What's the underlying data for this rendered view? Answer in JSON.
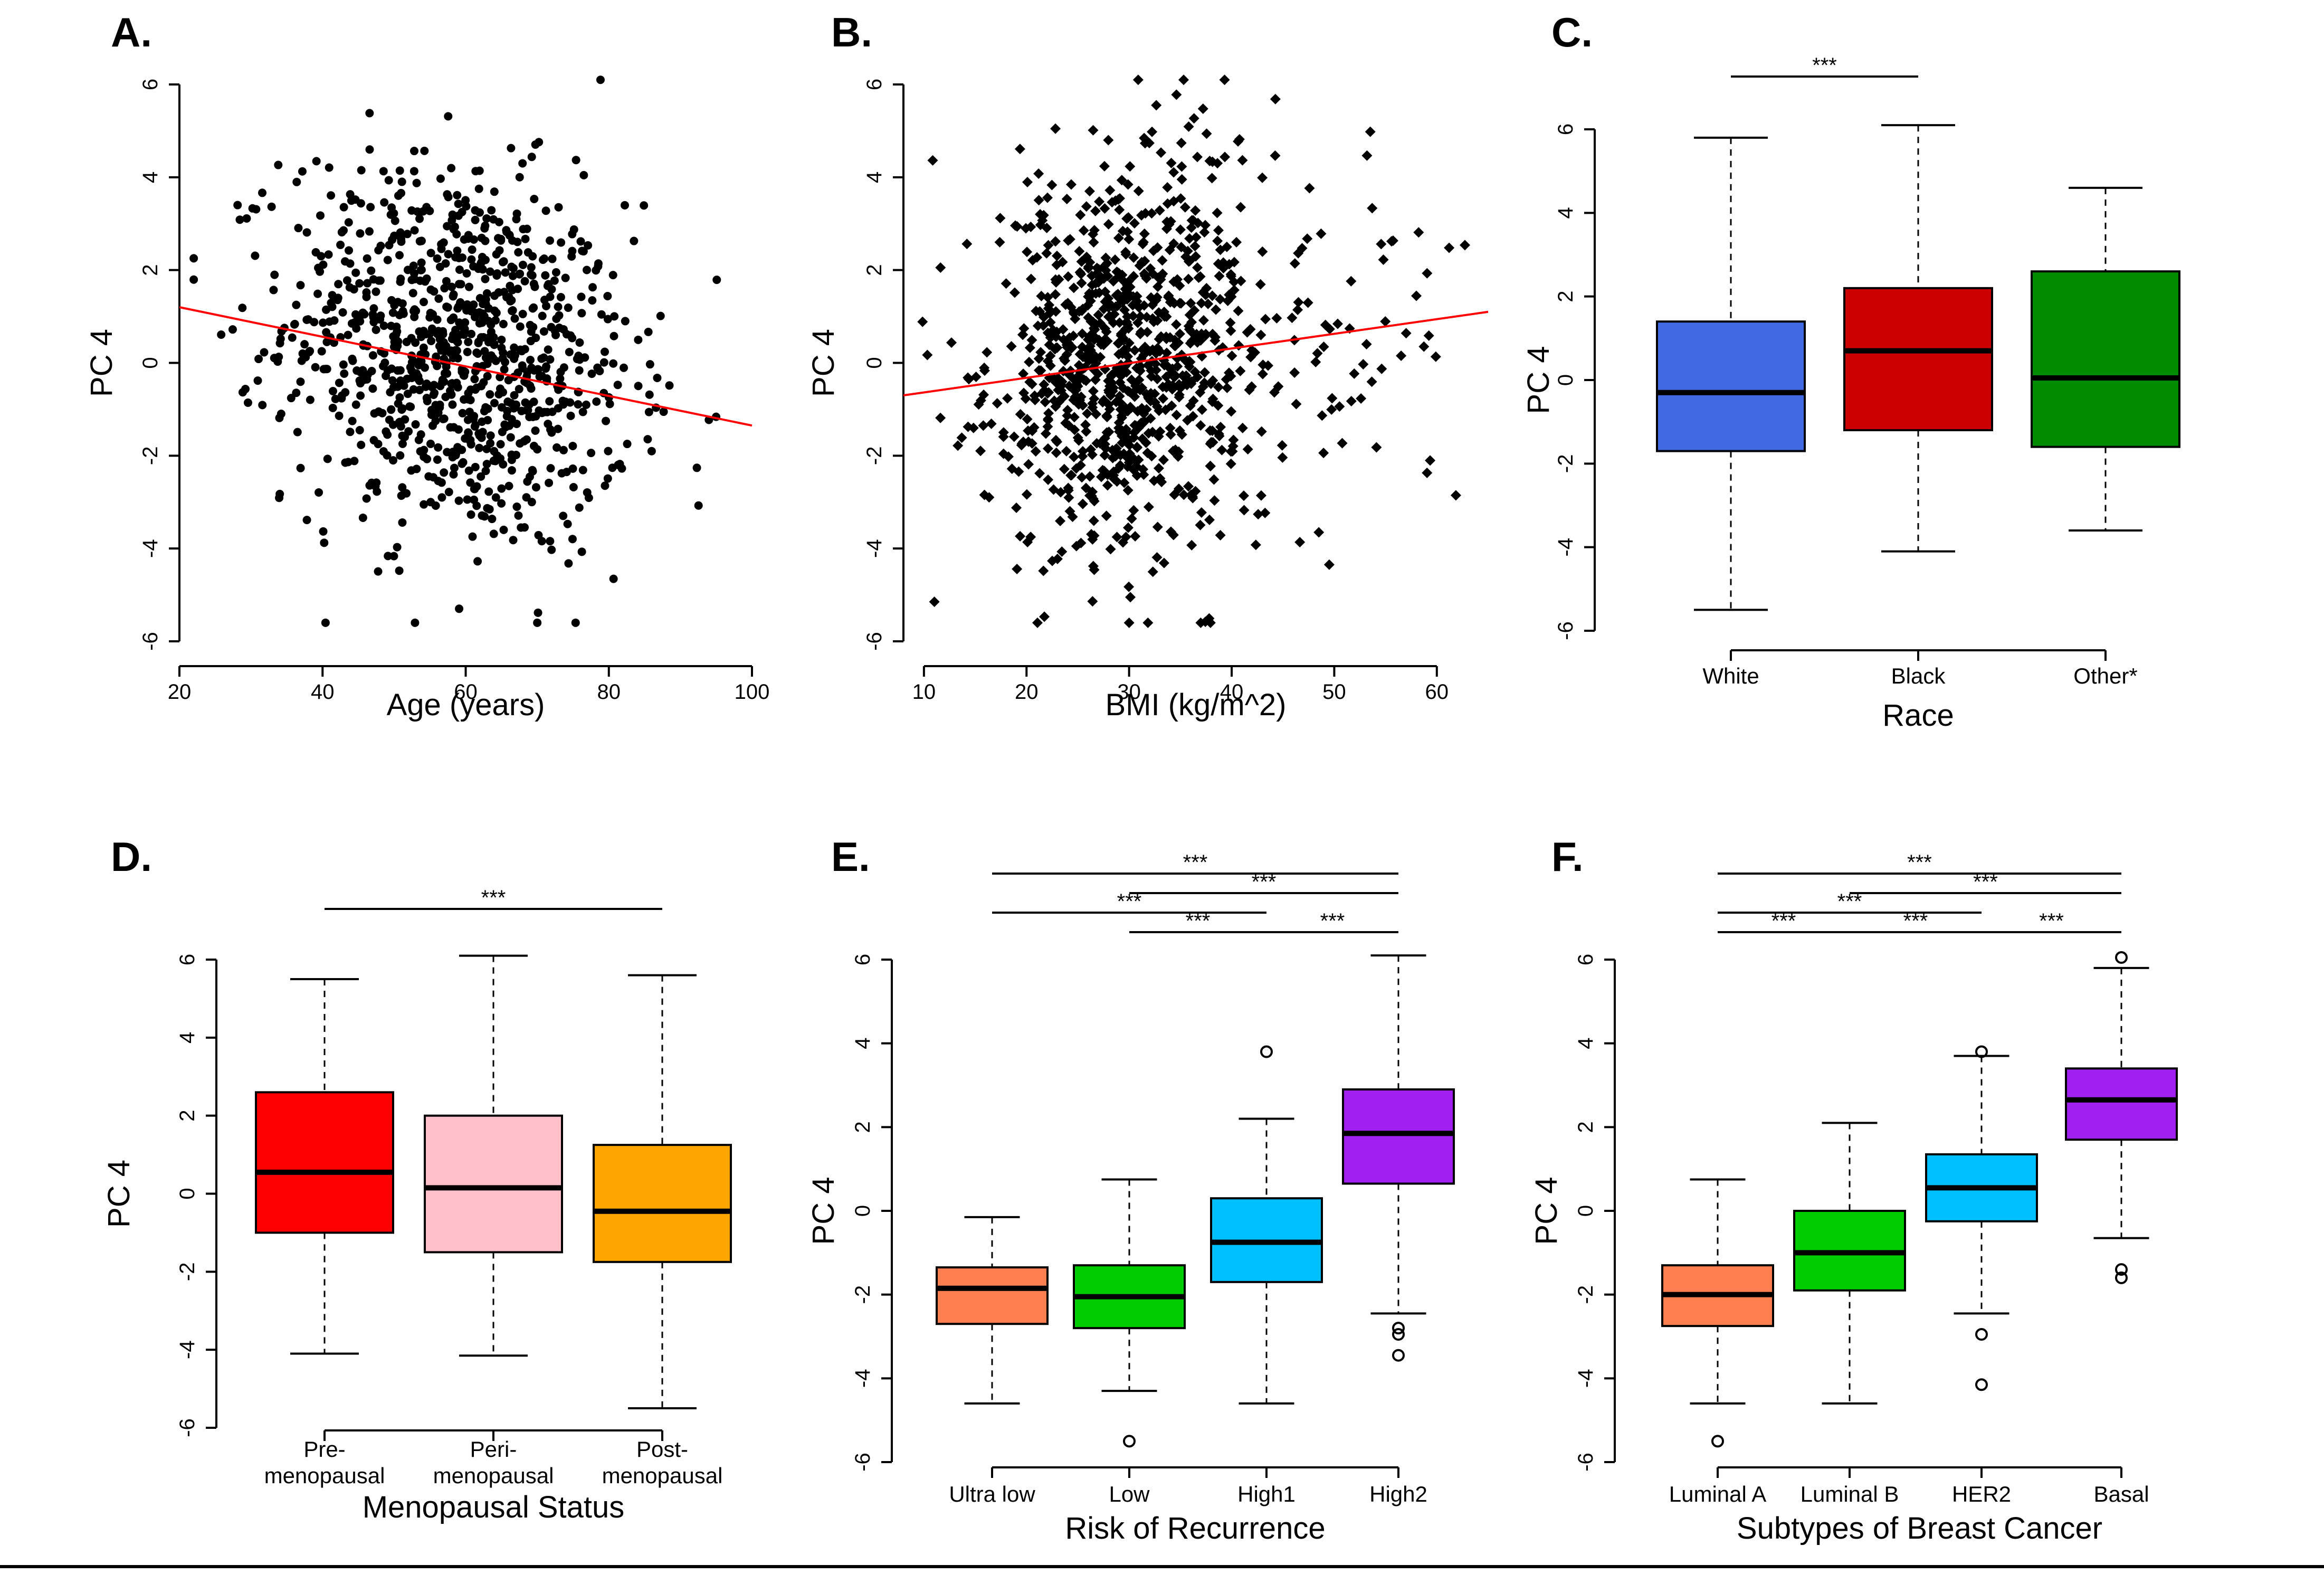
{
  "colors": {
    "fit_line": "#ff0000",
    "white": "#4169e1",
    "black": "#cc0000",
    "other": "#008b00",
    "pre": "#ff0000",
    "peri": "#ffc0cb",
    "post": "#ffa500",
    "ultra_low": "#ff7f50",
    "low": "#00cd00",
    "high1": "#00bfff",
    "high2": "#a020f0",
    "luminal_a": "#ff7f50",
    "luminal_b": "#00cd00",
    "her2": "#00bfff",
    "basal": "#a020f0"
  },
  "chart_data": [
    {
      "id": "A",
      "panel_label": "A.",
      "type": "scatter",
      "xlabel": "Age (years)",
      "ylabel": "PC 4",
      "xlim": [
        20,
        100
      ],
      "ylim": [
        -6,
        6
      ],
      "xticks": [
        20,
        40,
        60,
        80,
        100
      ],
      "xtick_labels": [
        "20",
        "40",
        "60",
        "80",
        "100"
      ],
      "yticks": [
        -6,
        -4,
        -2,
        0,
        2,
        4,
        6
      ],
      "ytick_labels": [
        "-6",
        "-4",
        "-2",
        "0",
        "2",
        "4",
        "6"
      ],
      "fit_line": {
        "x": [
          20,
          100
        ],
        "y": [
          1.2,
          -1.35
        ]
      },
      "points_note": "approximately 1000 patients; values estimated, centred near age 60 and PC 4 near 0"
    },
    {
      "id": "B",
      "panel_label": "B.",
      "type": "scatter",
      "xlabel": "BMI (kg/m^2)",
      "ylabel": "PC 4",
      "xlim": [
        8,
        65
      ],
      "ylim": [
        -6,
        6
      ],
      "xticks": [
        10,
        20,
        30,
        40,
        50,
        60
      ],
      "xtick_labels": [
        "10",
        "20",
        "30",
        "40",
        "50",
        "60"
      ],
      "yticks": [
        -6,
        -4,
        -2,
        0,
        2,
        4,
        6
      ],
      "ytick_labels": [
        "-6",
        "-4",
        "-2",
        "0",
        "2",
        "4",
        "6"
      ],
      "fit_line": {
        "x": [
          8,
          65
        ],
        "y": [
          -0.7,
          1.1
        ]
      },
      "points_note": "approximately 1000 patients; values estimated, centred near BMI 29 and PC 4 near 0"
    },
    {
      "id": "C",
      "panel_label": "C.",
      "type": "boxplot",
      "xlabel": "Race",
      "ylabel": "PC 4",
      "ylim": [
        -6,
        6
      ],
      "yticks": [
        -6,
        -4,
        -2,
        0,
        2,
        4,
        6
      ],
      "ytick_labels": [
        "-6",
        "-4",
        "-2",
        "0",
        "2",
        "4",
        "6"
      ],
      "categories": [
        "White",
        "Black",
        "Other*"
      ],
      "color_keys": [
        "white",
        "black",
        "other"
      ],
      "boxes": [
        {
          "whisker_low": -5.5,
          "q1": -1.7,
          "median": -0.3,
          "q3": 1.4,
          "whisker_high": 5.8,
          "outliers": []
        },
        {
          "whisker_low": -4.1,
          "q1": -1.2,
          "median": 0.7,
          "q3": 2.2,
          "whisker_high": 6.1,
          "outliers": []
        },
        {
          "whisker_low": -3.6,
          "q1": -1.6,
          "median": 0.05,
          "q3": 2.6,
          "whisker_high": 4.6,
          "outliers": []
        }
      ],
      "significance": [
        {
          "from": 0,
          "to": 1,
          "label": "***"
        }
      ]
    },
    {
      "id": "D",
      "panel_label": "D.",
      "type": "boxplot",
      "xlabel": "Menopausal Status",
      "ylabel": "PC 4",
      "ylim": [
        -6,
        6
      ],
      "yticks": [
        -6,
        -4,
        -2,
        0,
        2,
        4,
        6
      ],
      "ytick_labels": [
        "-6",
        "-4",
        "-2",
        "0",
        "2",
        "4",
        "6"
      ],
      "categories": [
        "Pre-\nmenopausal",
        "Peri-\nmenopausal",
        "Post-\nmenopausal"
      ],
      "color_keys": [
        "pre",
        "peri",
        "post"
      ],
      "boxes": [
        {
          "whisker_low": -4.1,
          "q1": -1.0,
          "median": 0.55,
          "q3": 2.6,
          "whisker_high": 5.5,
          "outliers": []
        },
        {
          "whisker_low": -4.15,
          "q1": -1.5,
          "median": 0.15,
          "q3": 2.0,
          "whisker_high": 6.1,
          "outliers": []
        },
        {
          "whisker_low": -5.5,
          "q1": -1.75,
          "median": -0.45,
          "q3": 1.25,
          "whisker_high": 5.6,
          "outliers": []
        }
      ],
      "significance": [
        {
          "from": 0,
          "to": 2,
          "label": "***"
        }
      ]
    },
    {
      "id": "E",
      "panel_label": "E.",
      "type": "boxplot",
      "xlabel": "Risk of Recurrence",
      "ylabel": "PC 4",
      "ylim": [
        -6,
        6
      ],
      "yticks": [
        -6,
        -4,
        -2,
        0,
        2,
        4,
        6
      ],
      "ytick_labels": [
        "-6",
        "-4",
        "-2",
        "0",
        "2",
        "4",
        "6"
      ],
      "categories": [
        "Ultra low",
        "Low",
        "High1",
        "High2"
      ],
      "color_keys": [
        "ultra_low",
        "low",
        "high1",
        "high2"
      ],
      "boxes": [
        {
          "whisker_low": -4.6,
          "q1": -2.7,
          "median": -1.85,
          "q3": -1.35,
          "whisker_high": -0.15,
          "outliers": []
        },
        {
          "whisker_low": -4.3,
          "q1": -2.8,
          "median": -2.05,
          "q3": -1.3,
          "whisker_high": 0.75,
          "outliers": [
            -5.5
          ]
        },
        {
          "whisker_low": -4.6,
          "q1": -1.7,
          "median": -0.75,
          "q3": 0.3,
          "whisker_high": 2.2,
          "outliers": [
            3.8
          ]
        },
        {
          "whisker_low": -2.45,
          "q1": 0.65,
          "median": 1.85,
          "q3": 2.9,
          "whisker_high": 6.1,
          "outliers": [
            -2.8,
            -2.95,
            -3.45
          ]
        }
      ],
      "significance": [
        {
          "from": 0,
          "to": 3,
          "label": "***"
        },
        {
          "from": 1,
          "to": 3,
          "label": "***"
        },
        {
          "from": 0,
          "to": 2,
          "label": "***"
        },
        {
          "from": 1,
          "to": 2,
          "label": "***"
        },
        {
          "from": 2,
          "to": 3,
          "label": "***"
        }
      ]
    },
    {
      "id": "F",
      "panel_label": "F.",
      "type": "boxplot",
      "xlabel": "Subtypes of Breast Cancer",
      "ylabel": "PC 4",
      "ylim": [
        -6,
        6
      ],
      "yticks": [
        -6,
        -4,
        -2,
        0,
        2,
        4,
        6
      ],
      "ytick_labels": [
        "-6",
        "-4",
        "-2",
        "0",
        "2",
        "4",
        "6"
      ],
      "categories": [
        "Luminal A",
        "Luminal B",
        "HER2",
        "Basal"
      ],
      "color_keys": [
        "luminal_a",
        "luminal_b",
        "her2",
        "basal"
      ],
      "boxes": [
        {
          "whisker_low": -4.6,
          "q1": -2.75,
          "median": -2.0,
          "q3": -1.3,
          "whisker_high": 0.75,
          "outliers": [
            -5.5
          ]
        },
        {
          "whisker_low": -4.6,
          "q1": -1.9,
          "median": -1.0,
          "q3": 0.0,
          "whisker_high": 2.1,
          "outliers": []
        },
        {
          "whisker_low": -2.45,
          "q1": -0.25,
          "median": 0.55,
          "q3": 1.35,
          "whisker_high": 3.7,
          "outliers": [
            3.8,
            -2.95,
            -4.15
          ]
        },
        {
          "whisker_low": -0.65,
          "q1": 1.7,
          "median": 2.65,
          "q3": 3.4,
          "whisker_high": 5.8,
          "outliers": [
            6.05,
            -1.4,
            -1.6
          ]
        }
      ],
      "significance": [
        {
          "from": 0,
          "to": 3,
          "label": "***"
        },
        {
          "from": 1,
          "to": 3,
          "label": "***"
        },
        {
          "from": 0,
          "to": 2,
          "label": "***"
        },
        {
          "from": 0,
          "to": 1,
          "label": "***"
        },
        {
          "from": 1,
          "to": 2,
          "label": "***"
        },
        {
          "from": 2,
          "to": 3,
          "label": "***"
        }
      ]
    }
  ]
}
